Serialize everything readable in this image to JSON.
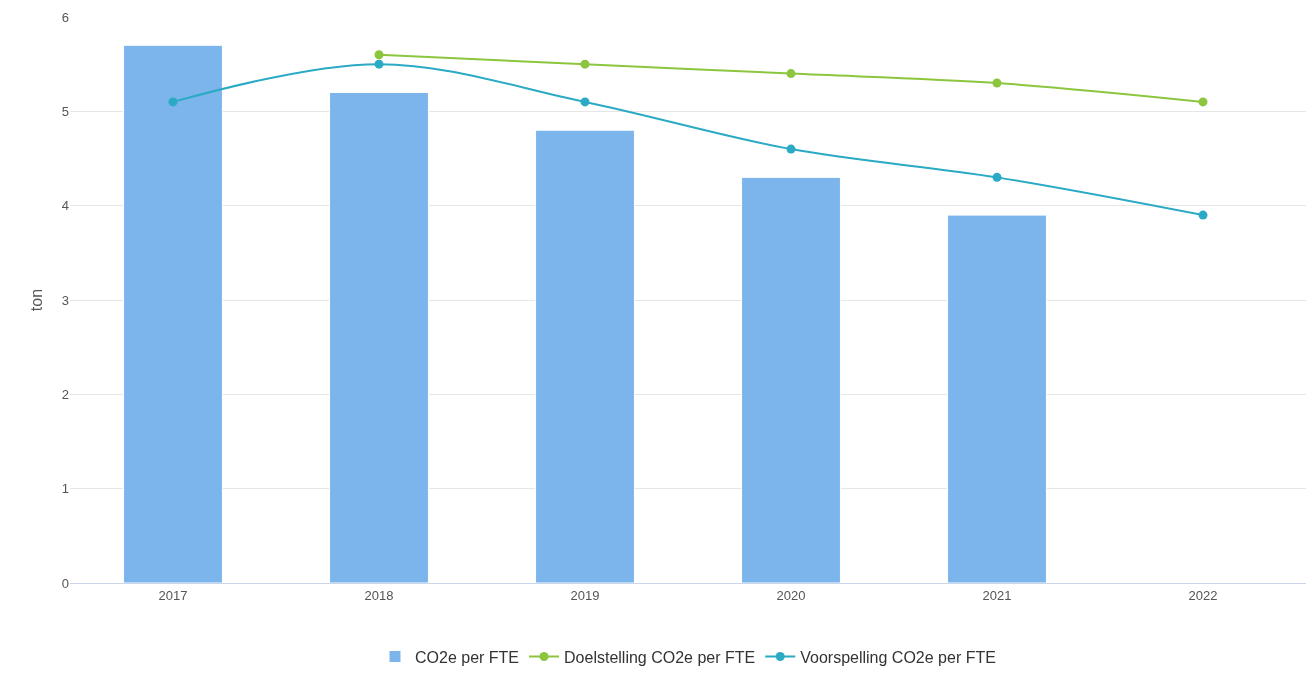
{
  "chart_data": {
    "type": "bar",
    "ylabel": "ton",
    "categories": [
      "2017",
      "2018",
      "2019",
      "2020",
      "2021",
      "2022"
    ],
    "series": [
      {
        "name": "CO2e per FTE",
        "color": "#7cb5ec",
        "values": [
          5.7,
          5.2,
          4.8,
          4.3,
          3.9,
          null
        ]
      },
      {
        "name": "Doelstelling CO2e per FTE",
        "type": "line",
        "color": "#8cc63f",
        "values": [
          null,
          5.6,
          5.5,
          5.4,
          5.3,
          5.1
        ]
      },
      {
        "name": "Voorspelling CO2e per FTE",
        "type": "line",
        "color": "#2aaac4",
        "values": [
          5.1,
          5.5,
          5.1,
          4.6,
          4.3,
          3.9
        ]
      }
    ],
    "ylim": [
      0,
      6
    ],
    "yticks": [
      0,
      1,
      2,
      3,
      4,
      5,
      6
    ],
    "grid": "y",
    "legend": "bottom",
    "marker": "circle",
    "line_style": "solid"
  }
}
